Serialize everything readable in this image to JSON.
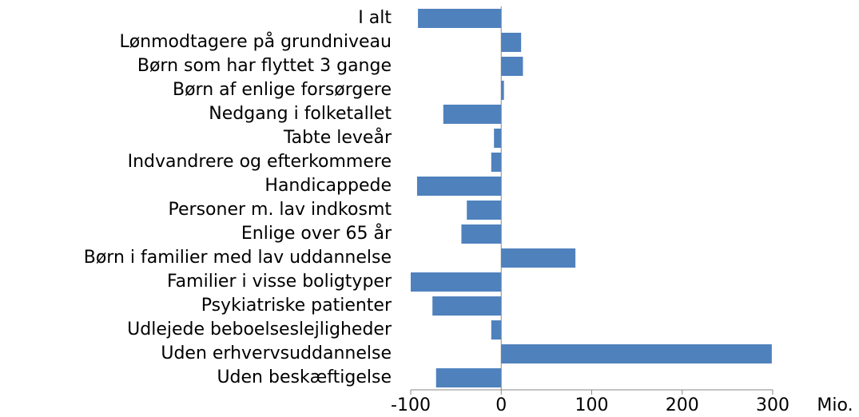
{
  "chart_data": {
    "type": "barh",
    "categories": [
      "I alt",
      "Lønmodtagere på grundniveau",
      "Børn som har flyttet 3 gange",
      "Børn af enlige forsørgere",
      "Nedgang i folketallet",
      "Tabte leveår",
      "Indvandrere og efterkommere",
      "Handicappede",
      "Personer m. lav indkosmt",
      "Enlige over 65 år",
      "Børn i familier med lav uddannelse",
      "Familier i visse boligtyper",
      "Psykiatriske patienter",
      "Udlejede beboelseslejligheder",
      "Uden erhvervsuddannelse",
      "Uden beskæftigelse"
    ],
    "values": [
      -92,
      22,
      24,
      3,
      -64,
      -8,
      -11,
      -93,
      -38,
      -44,
      82,
      -100,
      -76,
      -11,
      299,
      -72
    ],
    "color": "#4f81bd",
    "x_label": "Mio.",
    "xlim": [
      -100,
      300
    ],
    "xticks": [
      -100,
      0,
      100,
      200,
      300
    ]
  }
}
